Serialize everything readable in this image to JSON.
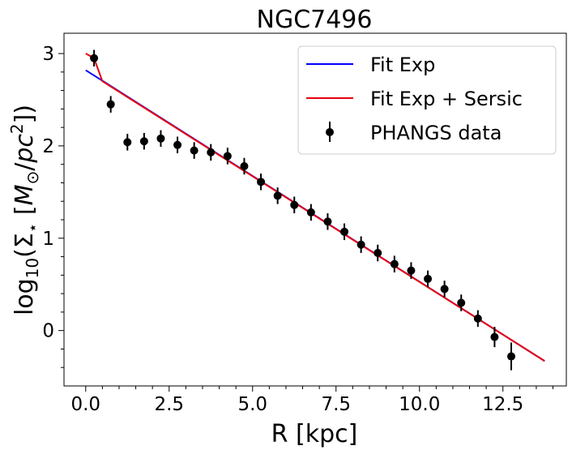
{
  "chart_data": {
    "type": "scatter",
    "title": "NGC7496",
    "xlabel": "R [kpc]",
    "ylabel": "log10(Σ⋆ [M⊙/pc²])",
    "xlim": [
      -0.65,
      14.4
    ],
    "ylim": [
      -0.6,
      3.22
    ],
    "xticks": [
      "0.0",
      "2.5",
      "5.0",
      "7.5",
      "10.0",
      "12.5"
    ],
    "yticks": [
      "0",
      "1",
      "2",
      "3"
    ],
    "legend_position": "top-right",
    "series": [
      {
        "name": "Fit Exp",
        "kind": "line",
        "color": "#0000ff",
        "x": [
          0.0,
          13.75
        ],
        "y": [
          2.82,
          -0.33
        ]
      },
      {
        "name": "Fit Exp + Sersic",
        "kind": "line",
        "color": "#e8000b",
        "x": [
          0.0,
          0.25,
          0.5,
          13.75
        ],
        "y": [
          3.0,
          2.95,
          2.7,
          -0.33
        ]
      },
      {
        "name": "PHANGS data",
        "kind": "errorbar",
        "color": "#000000",
        "x": [
          0.25,
          0.75,
          1.25,
          1.75,
          2.25,
          2.75,
          3.25,
          3.75,
          4.25,
          4.75,
          5.25,
          5.75,
          6.25,
          6.75,
          7.25,
          7.75,
          8.25,
          8.75,
          9.25,
          9.75,
          10.25,
          10.75,
          11.25,
          11.75,
          12.25,
          12.75
        ],
        "y": [
          2.95,
          2.45,
          2.04,
          2.05,
          2.08,
          2.01,
          1.95,
          1.93,
          1.89,
          1.78,
          1.61,
          1.46,
          1.36,
          1.28,
          1.18,
          1.07,
          0.93,
          0.84,
          0.72,
          0.65,
          0.56,
          0.45,
          0.3,
          0.13,
          -0.07,
          -0.28
        ],
        "yerr": [
          0.09,
          0.09,
          0.09,
          0.09,
          0.09,
          0.09,
          0.09,
          0.09,
          0.09,
          0.09,
          0.09,
          0.09,
          0.09,
          0.09,
          0.09,
          0.09,
          0.09,
          0.09,
          0.09,
          0.09,
          0.09,
          0.09,
          0.09,
          0.09,
          0.11,
          0.15
        ]
      }
    ]
  }
}
